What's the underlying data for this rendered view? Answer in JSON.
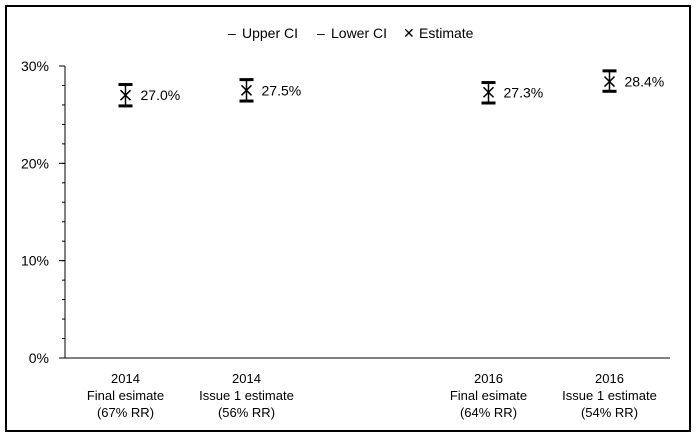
{
  "chart_data": {
    "type": "scatter",
    "title": "",
    "xlabel": "",
    "ylabel": "",
    "ylim": [
      0,
      30
    ],
    "y_ticks": [
      "0%",
      "10%",
      "20%",
      "30%"
    ],
    "grid": false,
    "legend_position": "top-center",
    "legend": [
      {
        "symbol": "–",
        "label": "Upper CI"
      },
      {
        "symbol": "–",
        "label": "Lower CI"
      },
      {
        "symbol": "✕",
        "label": "Estimate"
      }
    ],
    "categories": [
      {
        "label_lines": [
          "2014",
          "Final esimate",
          "(67% RR)"
        ],
        "estimate": 27.0,
        "upper_ci": 28.1,
        "lower_ci": 25.9,
        "data_label": "27.0%"
      },
      {
        "label_lines": [
          "2014",
          "Issue 1 estimate",
          "(56% RR)"
        ],
        "estimate": 27.5,
        "upper_ci": 28.6,
        "lower_ci": 26.4,
        "data_label": "27.5%"
      },
      {
        "label_lines": [],
        "estimate": null,
        "upper_ci": null,
        "lower_ci": null,
        "data_label": ""
      },
      {
        "label_lines": [
          "2016",
          "Final esimate",
          "(64% RR)"
        ],
        "estimate": 27.3,
        "upper_ci": 28.3,
        "lower_ci": 26.2,
        "data_label": "27.3%"
      },
      {
        "label_lines": [
          "2016",
          "Issue 1 estimate",
          "(54% RR)"
        ],
        "estimate": 28.4,
        "upper_ci": 29.5,
        "lower_ci": 27.4,
        "data_label": "28.4%"
      }
    ]
  }
}
